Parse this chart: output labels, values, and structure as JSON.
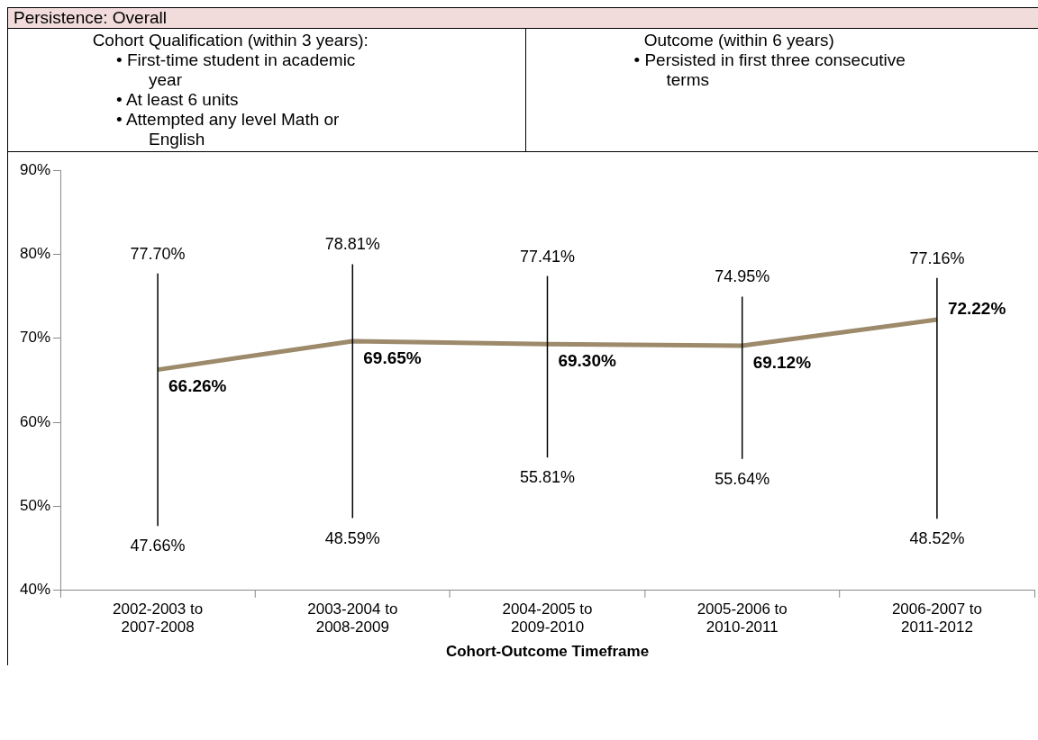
{
  "chart_data": {
    "type": "line",
    "title": "Persistence: Overall",
    "annotations": [
      "Cohort Qualification (within 3 years):",
      "• First-time student in academic year",
      "• At least 6 units",
      "• Attempted any level Math or English",
      "Outcome (within 6 years)",
      "• Persisted in first three consecutive terms",
      {
        "text": "77.70%",
        "x": "2002-2003 to 2007-2008",
        "y": 77.7
      },
      {
        "text": "78.81%",
        "x": "2003-2004 to 2008-2009",
        "y": 78.81
      },
      {
        "text": "77.41%",
        "x": "2004-2005 to 2009-2010",
        "y": 77.41
      },
      {
        "text": "74.95%",
        "x": "2005-2006 to 2010-2011",
        "y": 74.95
      },
      {
        "text": "77.16%",
        "x": "2006-2007 to 2011-2012",
        "y": 77.16
      },
      {
        "text": "47.66%",
        "x": "2002-2003 to 2007-2008",
        "y": 47.66
      },
      {
        "text": "48.59%",
        "x": "2003-2004 to 2008-2009",
        "y": 48.59
      },
      {
        "text": "55.81%",
        "x": "2004-2005 to 2009-2010",
        "y": 55.81
      },
      {
        "text": "55.64%",
        "x": "2005-2006 to 2010-2011",
        "y": 55.64
      },
      {
        "text": "48.52%",
        "x": "2006-2007 to 2011-2012",
        "y": 48.52
      }
    ],
    "xlabel": "Cohort-Outcome Timeframe",
    "categories": [
      "2002-2003 to 2007-2008",
      "2003-2004 to 2008-2009",
      "2004-2005 to 2009-2010",
      "2005-2006 to 2010-2011",
      "2006-2007 to 2011-2012"
    ],
    "series": [
      {
        "color": "#9c8a6a",
        "values": [
          66.26,
          69.65,
          69.3,
          69.12,
          72.22
        ],
        "errors": [
          [
            47.66,
            77.7
          ],
          [
            48.59,
            78.81
          ],
          [
            55.81,
            77.41
          ],
          [
            55.64,
            74.95
          ],
          [
            48.52,
            77.16
          ]
        ],
        "value_labels": [
          "66.26%",
          "69.65%",
          "69.30%",
          "69.12%",
          "72.22%"
        ]
      }
    ],
    "ylim": [
      40,
      90
    ],
    "yticks": [
      {
        "value": 40,
        "label": "40%"
      },
      {
        "value": 50,
        "label": "50%"
      },
      {
        "value": 60,
        "label": "60%"
      },
      {
        "value": 70,
        "label": "70%"
      },
      {
        "value": 80,
        "label": "80%"
      },
      {
        "value": 90,
        "label": "90%"
      }
    ],
    "grid": false,
    "legend": false,
    "marker": "none",
    "line_style": "solid"
  }
}
